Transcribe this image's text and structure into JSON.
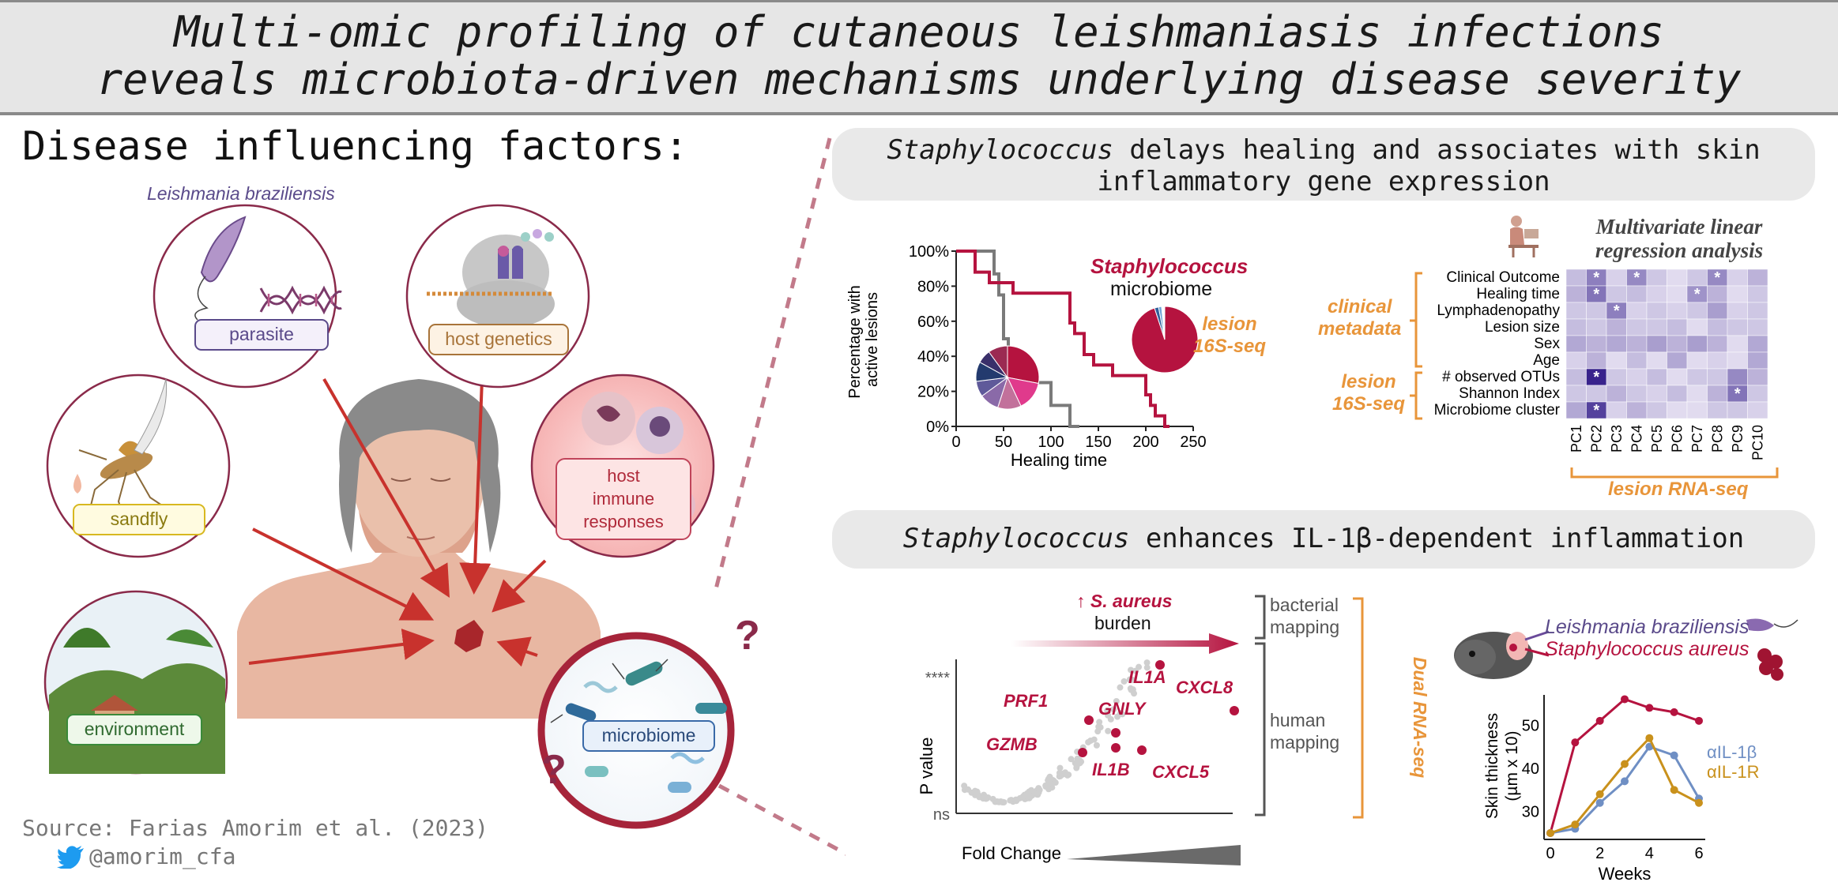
{
  "title": {
    "line1": "Multi-omic profiling of cutaneous leishmaniasis infections",
    "line2": "reveals microbiota-driven mechanisms underlying disease severity"
  },
  "left": {
    "heading": "Disease influencing factors:",
    "species_label": "Leishmania braziliensis",
    "factors": {
      "parasite": "parasite",
      "host_genetics": "host genetics",
      "sandfly": "sandfly",
      "host_immune": [
        "host",
        "immune",
        "responses"
      ],
      "environment": "environment",
      "microbiome": "microbiome"
    },
    "question_mark": "?",
    "source": "Source: Farias Amorim et al. (2023)",
    "twitter": "@amorim_cfa"
  },
  "panel1": {
    "header_italic": "Staphylococcus",
    "header_rest": " delays healing and associates with skin",
    "header_line2": "inflammatory gene expression",
    "staph_label": "Staphylococcus",
    "microbiome_label": "microbiome",
    "lesion_16s": [
      "lesion",
      "16S-seq"
    ],
    "multivar_title": [
      "Multivariate linear",
      "regression analysis"
    ],
    "clinical_metadata": [
      "clinical",
      "metadata"
    ],
    "lesion_16s_group": [
      "lesion",
      "16S-seq"
    ],
    "lesion_rnaseq": "lesion RNA-seq",
    "star": "*"
  },
  "panel2": {
    "header_italic": "Staphylococcus",
    "header_rest": " enhances IL-1β-dependent inflammation",
    "burden_arrow": "↑",
    "burden_species": "S. aureus",
    "burden_label": "burden",
    "bacterial_mapping": [
      "bacterial",
      "mapping"
    ],
    "human_mapping": [
      "human",
      "mapping"
    ],
    "dual_rnaseq": "Dual RNA-seq",
    "fold_change": "Fold Change",
    "mouse_labels": [
      "Leishmania braziliensis",
      "Staphylococcus aureus"
    ]
  },
  "colors": {
    "crimson": "#b5133f",
    "orange": "#e8953a",
    "purple": "#6a4a9a",
    "gray": "#7a7a7a",
    "blue": "#6f8fc4",
    "gold": "#c9911c"
  },
  "chart_data": [
    {
      "type": "line",
      "title": "",
      "xlabel": "Healing time",
      "ylabel": "Percentage with active lesions",
      "xlim": [
        0,
        250
      ],
      "ylim": [
        0,
        100
      ],
      "x_ticks": [
        "0",
        "50",
        "100",
        "150",
        "200",
        "250"
      ],
      "y_ticks": [
        "0%",
        "20%",
        "40%",
        "60%",
        "80%",
        "100%"
      ],
      "series": [
        {
          "name": "",
          "color": "#7a7a7a",
          "steps": [
            [
              0,
              100
            ],
            [
              40,
              100
            ],
            [
              40,
              87
            ],
            [
              45,
              87
            ],
            [
              45,
              75
            ],
            [
              50,
              75
            ],
            [
              50,
              50
            ],
            [
              55,
              50
            ],
            [
              55,
              37
            ],
            [
              60,
              37
            ],
            [
              60,
              25
            ],
            [
              100,
              25
            ],
            [
              100,
              12
            ],
            [
              120,
              12
            ],
            [
              120,
              0
            ],
            [
              130,
              0
            ]
          ]
        },
        {
          "name": "",
          "color": "#b5133f",
          "steps": [
            [
              0,
              100
            ],
            [
              20,
              100
            ],
            [
              20,
              88
            ],
            [
              35,
              88
            ],
            [
              35,
              82
            ],
            [
              60,
              82
            ],
            [
              60,
              76
            ],
            [
              120,
              76
            ],
            [
              120,
              59
            ],
            [
              125,
              59
            ],
            [
              125,
              53
            ],
            [
              135,
              53
            ],
            [
              135,
              41
            ],
            [
              145,
              41
            ],
            [
              145,
              35
            ],
            [
              165,
              35
            ],
            [
              165,
              29
            ],
            [
              200,
              29
            ],
            [
              200,
              18
            ],
            [
              205,
              18
            ],
            [
              205,
              12
            ],
            [
              210,
              12
            ],
            [
              210,
              6
            ],
            [
              220,
              6
            ],
            [
              220,
              0
            ],
            [
              225,
              0
            ]
          ]
        }
      ]
    },
    {
      "type": "pie",
      "title": "",
      "slices": [
        {
          "label": "",
          "value": 28,
          "color": "#b5133f"
        },
        {
          "label": "",
          "value": 15,
          "color": "#e03a8c"
        },
        {
          "label": "",
          "value": 12,
          "color": "#c2719b"
        },
        {
          "label": "",
          "value": 10,
          "color": "#8a6aa8"
        },
        {
          "label": "",
          "value": 8,
          "color": "#5f5a9a"
        },
        {
          "label": "",
          "value": 10,
          "color": "#233a6e"
        },
        {
          "label": "",
          "value": 7,
          "color": "#3a2f6a"
        },
        {
          "label": "",
          "value": 10,
          "color": "#9b2a52"
        }
      ]
    },
    {
      "type": "pie",
      "title": "",
      "slices": [
        {
          "label": "",
          "value": 95,
          "color": "#b5133f"
        },
        {
          "label": "",
          "value": 2,
          "color": "#2f5f9a"
        },
        {
          "label": "",
          "value": 1.5,
          "color": "#6fa3d6"
        },
        {
          "label": "",
          "value": 1.5,
          "color": "#ffffff"
        }
      ]
    },
    {
      "type": "heatmap",
      "title": "Multivariate linear regression analysis",
      "columns": [
        "PC1",
        "PC2",
        "PC3",
        "PC4",
        "PC5",
        "PC6",
        "PC7",
        "PC8",
        "PC9",
        "PC10"
      ],
      "rows": [
        "Clinical Outcome",
        "Healing time",
        "Lymphadenopathy",
        "Lesion size",
        "Sex",
        "Age",
        "# observed OTUs",
        "Shannon Index",
        "Microbiome cluster"
      ],
      "values": [
        [
          0.25,
          0.55,
          0.15,
          0.5,
          0.2,
          0.1,
          0.2,
          0.5,
          0.15,
          0.3
        ],
        [
          0.3,
          0.6,
          0.2,
          0.25,
          0.15,
          0.1,
          0.45,
          0.3,
          0.1,
          0.2
        ],
        [
          0.2,
          0.2,
          0.55,
          0.15,
          0.2,
          0.15,
          0.2,
          0.4,
          0.15,
          0.2
        ],
        [
          0.25,
          0.2,
          0.3,
          0.2,
          0.2,
          0.25,
          0.1,
          0.25,
          0.2,
          0.2
        ],
        [
          0.35,
          0.3,
          0.35,
          0.3,
          0.4,
          0.3,
          0.4,
          0.3,
          0.1,
          0.35
        ],
        [
          0.15,
          0.3,
          0.1,
          0.25,
          0.1,
          0.35,
          0.1,
          0.15,
          0.1,
          0.35
        ],
        [
          0.25,
          1.0,
          0.2,
          0.15,
          0.25,
          0.1,
          0.2,
          0.2,
          0.5,
          0.3
        ],
        [
          0.2,
          0.2,
          0.3,
          0.2,
          0.15,
          0.25,
          0.1,
          0.3,
          0.6,
          0.2
        ],
        [
          0.35,
          0.85,
          0.15,
          0.3,
          0.2,
          0.1,
          0.1,
          0.2,
          0.2,
          0.15
        ]
      ],
      "significant": [
        [
          0,
          1
        ],
        [
          0,
          3
        ],
        [
          0,
          7
        ],
        [
          1,
          1
        ],
        [
          1,
          6
        ],
        [
          2,
          2
        ],
        [
          6,
          1
        ],
        [
          7,
          8
        ],
        [
          8,
          1
        ]
      ]
    },
    {
      "type": "scatter",
      "title": "",
      "xlabel": "Fold Change",
      "ylabel": "P value",
      "y_ticks": [
        "ns",
        "****"
      ],
      "highlighted_genes": [
        "IL1A",
        "CXCL8",
        "PRF1",
        "GNLY",
        "GZMB",
        "IL1B",
        "CXCL5"
      ]
    },
    {
      "type": "line",
      "title": "",
      "xlabel": "Weeks",
      "ylabel": "Skin thickness (µm x 10)",
      "xlim": [
        0,
        6
      ],
      "ylim": [
        25,
        57
      ],
      "x_ticks": [
        "0",
        "2",
        "4",
        "6"
      ],
      "y_ticks": [
        "30",
        "40",
        "50"
      ],
      "x": [
        0,
        1,
        2,
        3,
        4,
        5,
        6
      ],
      "series": [
        {
          "name": "",
          "color": "#b5133f",
          "values": [
            25,
            46,
            51,
            56,
            54,
            53,
            51
          ]
        },
        {
          "name": "αIL-1β",
          "color": "#6f8fc4",
          "values": [
            25,
            26,
            32,
            37,
            45,
            43,
            33
          ]
        },
        {
          "name": "αIL-1R",
          "color": "#c9911c",
          "values": [
            25,
            27,
            34,
            41,
            47,
            35,
            32
          ]
        }
      ]
    }
  ]
}
